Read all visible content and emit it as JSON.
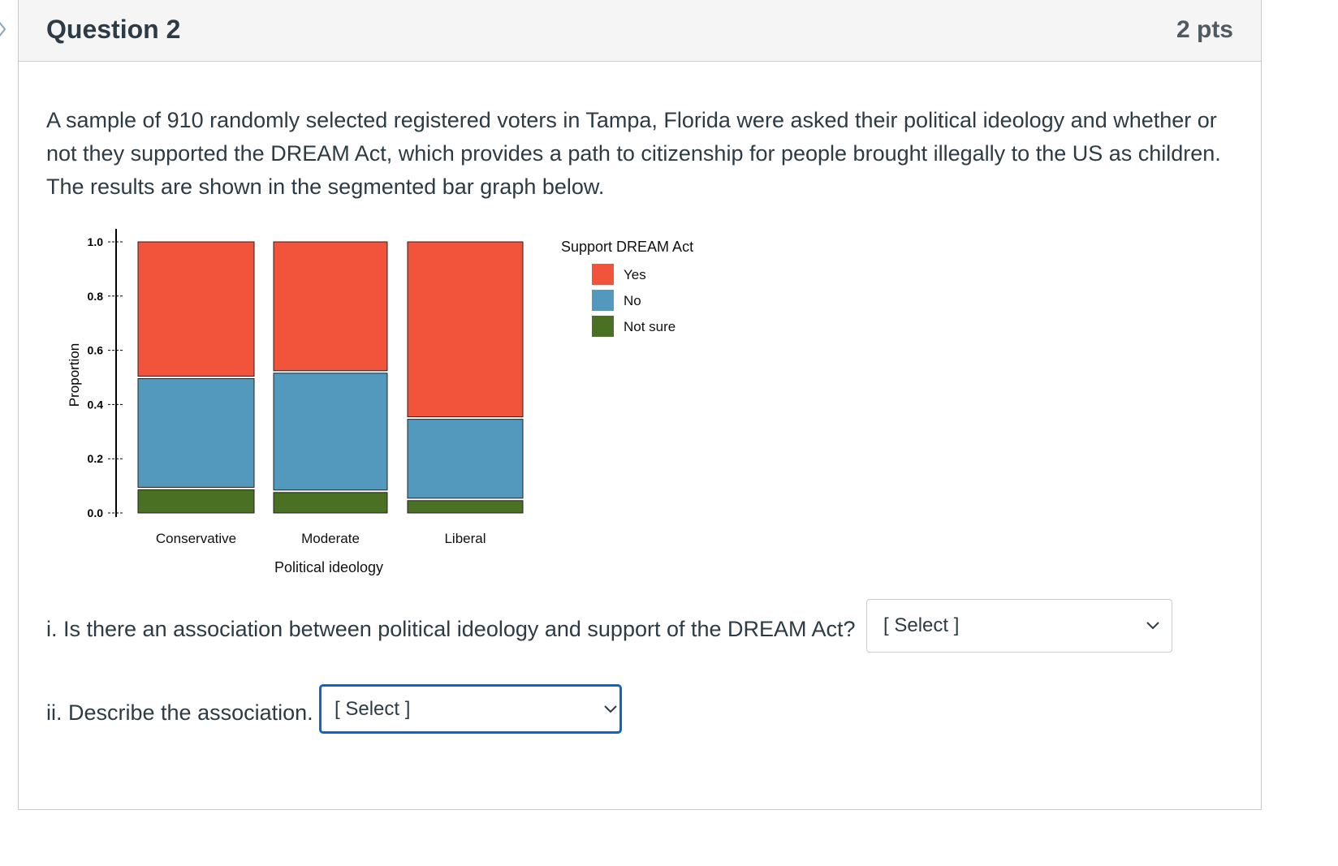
{
  "question": {
    "title": "Question 2",
    "points": "2 pts",
    "text": "A sample of 910 randomly selected registered voters in Tampa, Florida were asked their political ideology and whether or not they supported the DREAM Act, which provides a path to citizenship for people brought illegally to the US as children. The results are shown in the segmented bar graph below."
  },
  "chart_data": {
    "type": "bar",
    "stacked": true,
    "categories": [
      "Conservative",
      "Moderate",
      "Liberal"
    ],
    "series": [
      {
        "name": "Not sure",
        "color": "#4a7023",
        "values": [
          0.09,
          0.08,
          0.05
        ]
      },
      {
        "name": "No",
        "color": "#5399bd",
        "values": [
          0.41,
          0.44,
          0.3
        ]
      },
      {
        "name": "Yes",
        "color": "#f2533b",
        "values": [
          0.5,
          0.48,
          0.65
        ]
      }
    ],
    "xlabel": "Political ideology",
    "ylabel": "Proportion",
    "ylim": [
      0,
      1.0
    ],
    "yticks": [
      "0.0",
      "0.2",
      "0.4",
      "0.6",
      "0.8",
      "1.0"
    ],
    "legend_title": "Support DREAM Act",
    "legend_order": [
      "Yes",
      "No",
      "Not sure"
    ],
    "legend_position": "right"
  },
  "parts": [
    {
      "label": "i. Is there an association between political ideology and support of the DREAM Act?",
      "select_value": "[ Select ]"
    },
    {
      "label": "ii. Describe the association.",
      "select_value": "[ Select ]"
    }
  ]
}
